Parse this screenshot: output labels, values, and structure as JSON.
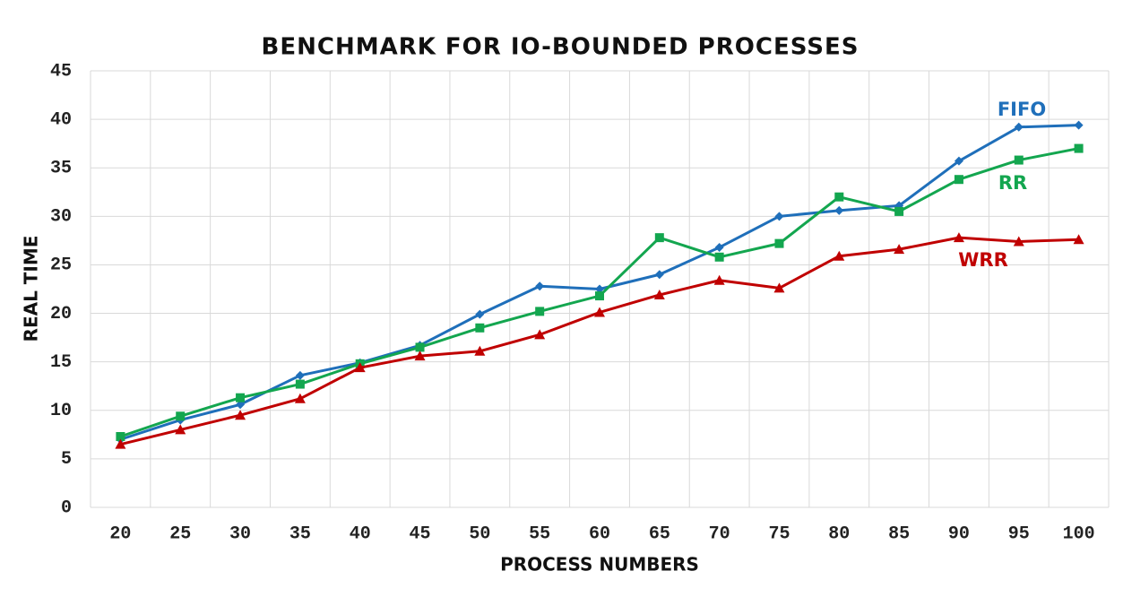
{
  "chart_data": {
    "type": "line",
    "title": "BENCHMARK FOR IO-BOUNDED PROCESSES",
    "x_label": "PROCESS NUMBERS",
    "y_label": "REAL TIME",
    "categories": [
      "20",
      "25",
      "30",
      "35",
      "40",
      "45",
      "50",
      "55",
      "60",
      "65",
      "70",
      "75",
      "80",
      "85",
      "90",
      "95",
      "100"
    ],
    "series": [
      {
        "name": "FIFO",
        "color": "#1f6fba",
        "marker": "diamond",
        "values": [
          7.0,
          9.0,
          10.6,
          13.6,
          14.9,
          16.7,
          19.9,
          22.8,
          22.5,
          24.0,
          26.8,
          30.0,
          30.6,
          31.1,
          35.7,
          39.2,
          39.4
        ]
      },
      {
        "name": "RR",
        "color": "#13a64f",
        "marker": "square",
        "values": [
          7.3,
          9.4,
          11.3,
          12.7,
          14.8,
          16.5,
          18.5,
          20.2,
          21.8,
          27.8,
          25.8,
          27.2,
          32.0,
          30.5,
          33.8,
          35.8,
          37.0
        ]
      },
      {
        "name": "WRR",
        "color": "#c00000",
        "marker": "triangle",
        "values": [
          6.5,
          8.0,
          9.5,
          11.2,
          14.4,
          15.6,
          16.1,
          17.8,
          20.1,
          21.9,
          23.4,
          22.6,
          25.9,
          26.6,
          27.8,
          27.4,
          27.6
        ]
      }
    ],
    "ylim": [
      0,
      45
    ],
    "yticks": [
      0,
      5,
      10,
      15,
      20,
      25,
      30,
      35,
      40,
      45
    ],
    "grid": true
  }
}
